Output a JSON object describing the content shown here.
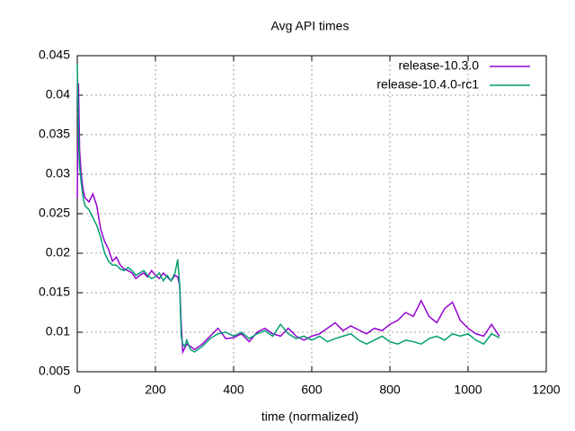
{
  "chart_data": {
    "type": "line",
    "title": "Avg API times",
    "x_label": "time (normalized)",
    "x": [
      0,
      3,
      6,
      10,
      15,
      20,
      30,
      40,
      50,
      60,
      70,
      80,
      90,
      100,
      110,
      120,
      130,
      140,
      150,
      160,
      170,
      180,
      190,
      200,
      210,
      220,
      230,
      240,
      250,
      257,
      262,
      266,
      270,
      275,
      280,
      290,
      300,
      320,
      340,
      360,
      380,
      400,
      420,
      440,
      460,
      480,
      500,
      520,
      540,
      560,
      580,
      600,
      620,
      640,
      660,
      680,
      700,
      720,
      740,
      760,
      780,
      800,
      820,
      840,
      860,
      880,
      900,
      920,
      940,
      960,
      980,
      1000,
      1020,
      1040,
      1060,
      1080
    ],
    "series": [
      {
        "name": "release-10.3.0",
        "color": "#9400d3",
        "values": [
          0.027,
          0.0415,
          0.033,
          0.03,
          0.028,
          0.027,
          0.0265,
          0.0275,
          0.026,
          0.023,
          0.0215,
          0.0205,
          0.019,
          0.0195,
          0.0185,
          0.018,
          0.0178,
          0.0175,
          0.0168,
          0.0172,
          0.0175,
          0.017,
          0.0178,
          0.0172,
          0.0168,
          0.0175,
          0.017,
          0.0165,
          0.0172,
          0.017,
          0.016,
          0.011,
          0.0075,
          0.008,
          0.0085,
          0.0082,
          0.0078,
          0.0085,
          0.0095,
          0.0105,
          0.0092,
          0.0093,
          0.0098,
          0.0088,
          0.01,
          0.0105,
          0.0098,
          0.0095,
          0.0105,
          0.0095,
          0.009,
          0.0095,
          0.0098,
          0.0105,
          0.0112,
          0.0102,
          0.0108,
          0.0103,
          0.0098,
          0.0105,
          0.0102,
          0.011,
          0.0115,
          0.0125,
          0.012,
          0.014,
          0.012,
          0.0112,
          0.013,
          0.0138,
          0.0115,
          0.0105,
          0.0098,
          0.0095,
          0.011,
          0.0095
        ]
      },
      {
        "name": "release-10.4.0-rc1",
        "color": "#009e73",
        "values": [
          0.044,
          0.035,
          0.031,
          0.029,
          0.027,
          0.026,
          0.0255,
          0.0245,
          0.0235,
          0.022,
          0.02,
          0.019,
          0.0185,
          0.0185,
          0.018,
          0.0178,
          0.0182,
          0.0178,
          0.0172,
          0.0175,
          0.0178,
          0.0172,
          0.0168,
          0.017,
          0.0175,
          0.0165,
          0.0172,
          0.0165,
          0.0175,
          0.0192,
          0.016,
          0.0095,
          0.0085,
          0.0082,
          0.009,
          0.0078,
          0.0075,
          0.0082,
          0.0092,
          0.0098,
          0.01,
          0.0095,
          0.01,
          0.0092,
          0.0098,
          0.0102,
          0.0095,
          0.011,
          0.0098,
          0.0092,
          0.0095,
          0.009,
          0.0095,
          0.0088,
          0.0092,
          0.0095,
          0.0098,
          0.009,
          0.0085,
          0.009,
          0.0095,
          0.0088,
          0.0085,
          0.009,
          0.0088,
          0.0085,
          0.0092,
          0.0095,
          0.009,
          0.0098,
          0.0095,
          0.0098,
          0.009,
          0.0085,
          0.0098,
          0.0093
        ]
      }
    ],
    "xlim": [
      0,
      1200
    ],
    "xticks": [
      0,
      200,
      400,
      600,
      800,
      1000,
      1200
    ],
    "ylim": [
      0.005,
      0.045
    ],
    "yticks": [
      0.005,
      0.01,
      0.015,
      0.02,
      0.025,
      0.03,
      0.035,
      0.04,
      0.045
    ],
    "grid": true,
    "legend": "top-right"
  }
}
